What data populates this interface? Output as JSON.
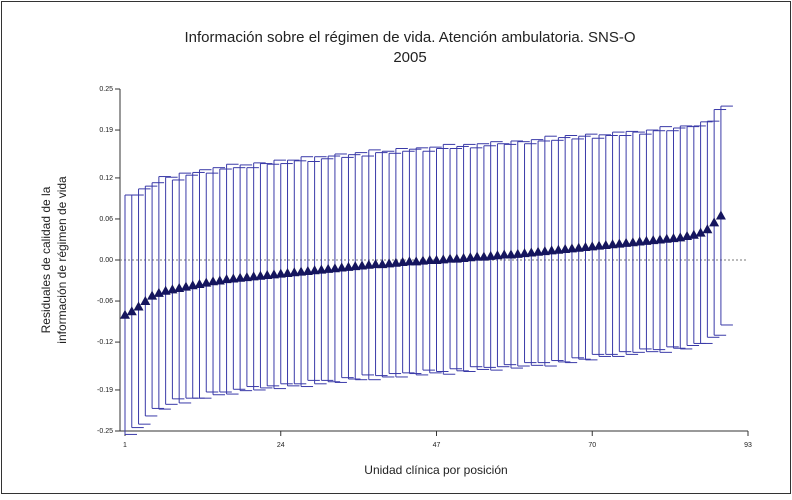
{
  "chart_data": {
    "type": "errorbar",
    "title": [
      "Información sobre el régimen de vida.  Atención ambulatoria.  SNS-O",
      "2005"
    ],
    "ylabel": [
      "Residuales de calidad de la",
      "información de régimen de vida"
    ],
    "xlabel": "Unidad clínica por posición",
    "color": "#3a3aa8",
    "marker_color": "#15155e",
    "x": [
      1,
      2,
      3,
      4,
      5,
      6,
      7,
      8,
      9,
      10,
      11,
      12,
      13,
      14,
      15,
      16,
      17,
      18,
      19,
      20,
      21,
      22,
      23,
      24,
      25,
      26,
      27,
      28,
      29,
      30,
      31,
      32,
      33,
      34,
      35,
      36,
      37,
      38,
      39,
      40,
      41,
      42,
      43,
      44,
      45,
      46,
      47,
      48,
      49,
      50,
      51,
      52,
      53,
      54,
      55,
      56,
      57,
      58,
      59,
      60,
      61,
      62,
      63,
      64,
      65,
      66,
      67,
      68,
      69,
      70,
      71,
      72,
      73,
      74,
      75,
      76,
      77,
      78,
      79,
      80,
      81,
      82,
      83,
      84,
      85,
      86,
      87,
      88,
      89
    ],
    "values": [
      -0.08,
      -0.075,
      -0.068,
      -0.06,
      -0.052,
      -0.048,
      -0.045,
      -0.043,
      -0.041,
      -0.039,
      -0.037,
      -0.035,
      -0.033,
      -0.031,
      -0.03,
      -0.028,
      -0.027,
      -0.026,
      -0.025,
      -0.024,
      -0.023,
      -0.022,
      -0.021,
      -0.02,
      -0.019,
      -0.018,
      -0.017,
      -0.016,
      -0.015,
      -0.014,
      -0.013,
      -0.012,
      -0.011,
      -0.01,
      -0.009,
      -0.008,
      -0.007,
      -0.006,
      -0.006,
      -0.005,
      -0.004,
      -0.003,
      -0.002,
      -0.002,
      -0.001,
      0.0,
      0.0,
      0.001,
      0.002,
      0.002,
      0.003,
      0.004,
      0.005,
      0.005,
      0.006,
      0.007,
      0.008,
      0.008,
      0.009,
      0.01,
      0.011,
      0.012,
      0.013,
      0.014,
      0.015,
      0.016,
      0.017,
      0.018,
      0.019,
      0.02,
      0.021,
      0.022,
      0.023,
      0.024,
      0.025,
      0.026,
      0.027,
      0.028,
      0.029,
      0.03,
      0.031,
      0.032,
      0.033,
      0.035,
      0.037,
      0.04,
      0.045,
      0.055,
      0.065
    ],
    "errors": [
      0.175,
      0.17,
      0.172,
      0.168,
      0.165,
      0.17,
      0.166,
      0.16,
      0.168,
      0.163,
      0.165,
      0.167,
      0.16,
      0.166,
      0.163,
      0.168,
      0.162,
      0.165,
      0.16,
      0.166,
      0.164,
      0.162,
      0.167,
      0.161,
      0.165,
      0.163,
      0.168,
      0.16,
      0.166,
      0.162,
      0.165,
      0.167,
      0.161,
      0.164,
      0.166,
      0.16,
      0.168,
      0.163,
      0.165,
      0.161,
      0.167,
      0.162,
      0.164,
      0.166,
      0.16,
      0.165,
      0.163,
      0.168,
      0.161,
      0.164,
      0.166,
      0.16,
      0.165,
      0.162,
      0.167,
      0.163,
      0.161,
      0.166,
      0.164,
      0.16,
      0.165,
      0.162,
      0.168,
      0.161,
      0.164,
      0.166,
      0.16,
      0.163,
      0.165,
      0.158,
      0.162,
      0.16,
      0.164,
      0.158,
      0.163,
      0.161,
      0.157,
      0.162,
      0.16,
      0.165,
      0.158,
      0.161,
      0.163,
      0.16,
      0.159,
      0.162,
      0.158,
      0.165,
      0.16
    ],
    "xlim": [
      1,
      93
    ],
    "xticks": [
      1,
      24,
      47,
      70,
      93
    ],
    "ylim": [
      -0.25,
      0.25
    ],
    "yticks": [
      -0.25,
      -0.19,
      -0.12,
      -0.06,
      {
        "value": 0,
        "label": "0.00"
      },
      0.06,
      0.12,
      0.19,
      0.25
    ],
    "zero_line": true
  }
}
